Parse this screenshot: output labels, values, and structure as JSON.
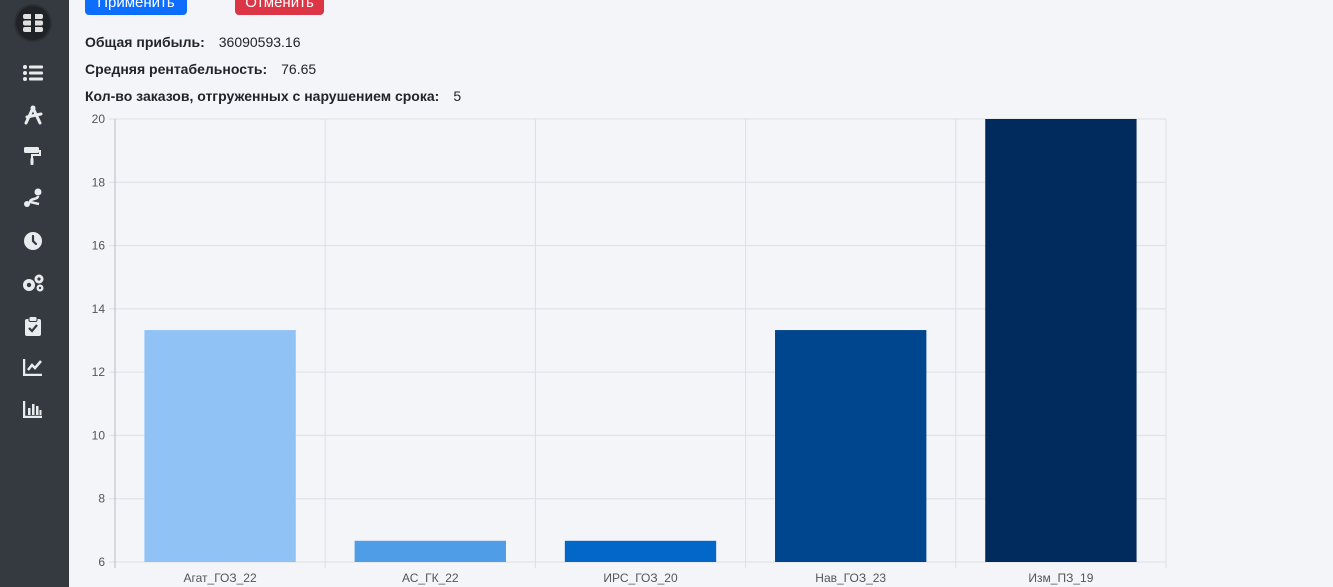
{
  "sidebar": {
    "logo_icon": "logo-icon",
    "items": [
      {
        "icon": "list-icon"
      },
      {
        "icon": "compass-drafting-icon"
      },
      {
        "icon": "paint-roller-icon"
      },
      {
        "icon": "route-icon"
      },
      {
        "icon": "clock-icon"
      },
      {
        "icon": "gears-icon"
      },
      {
        "icon": "clipboard-check-icon"
      },
      {
        "icon": "line-chart-icon"
      },
      {
        "icon": "bar-chart-icon"
      }
    ]
  },
  "actions": {
    "apply_label": "Применить",
    "cancel_label": "Отменить",
    "apply_color": "#0d6efd",
    "cancel_color": "#dc3545"
  },
  "stats": {
    "profit_label": "Общая прибыль:",
    "profit_value": "36090593.16",
    "profitability_label": "Средняя рентабельность:",
    "profitability_value": "76.65",
    "late_orders_label": "Кол-во заказов, отгруженных с нарушением срока:",
    "late_orders_value": "5"
  },
  "chart_data": {
    "type": "bar",
    "categories": [
      "Агат_ГОЗ_22",
      "АС_ГК_22",
      "ИРС_ГОЗ_20",
      "Нав_ГОЗ_23",
      "Изм_ПЗ_19"
    ],
    "values": [
      13.33,
      6.67,
      6.67,
      13.33,
      20
    ],
    "colors": [
      "#90c2f5",
      "#4e9de6",
      "#0366c9",
      "#00468f",
      "#002b5c"
    ],
    "ylim": [
      6,
      20
    ],
    "yticks": [
      6,
      8,
      10,
      12,
      14,
      16,
      18,
      20
    ],
    "grid": true
  }
}
